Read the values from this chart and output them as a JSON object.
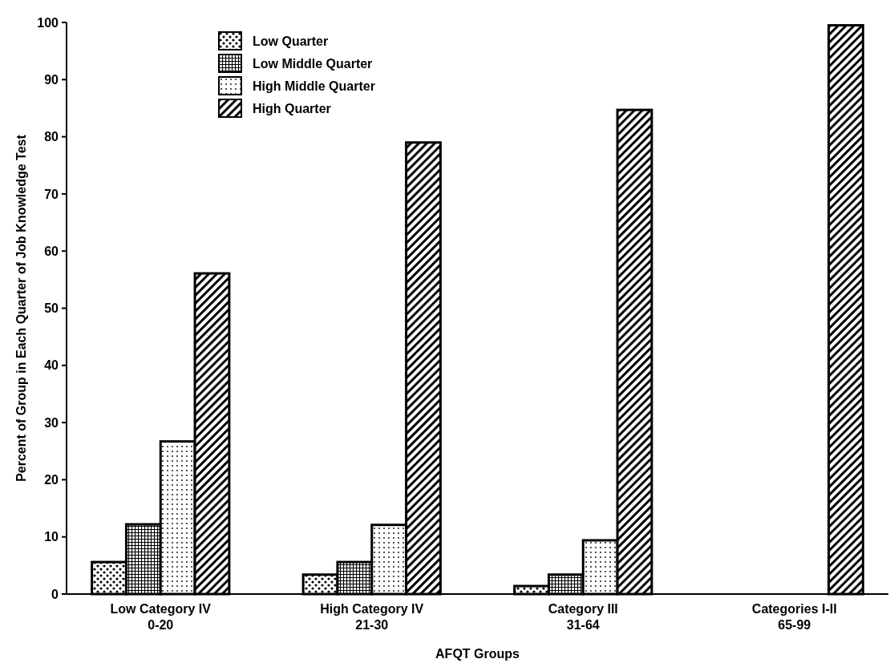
{
  "chart_data": {
    "type": "bar",
    "xlabel": "AFQT Groups",
    "ylabel": "Percent of Group in Each Quarter of Job Knowledge Test",
    "categories": [
      "Low Category IV\n0-20",
      "High Category IV\n21-30",
      "Category III\n31-64",
      "Categories I-II\n65-99"
    ],
    "series": [
      {
        "name": "Low Quarter",
        "color": "#000000",
        "values": [
          5.6,
          3.4,
          1.4,
          0
        ]
      },
      {
        "name": "Low Middle Quarter",
        "color": "#000000",
        "values": [
          12.2,
          5.6,
          3.4,
          0
        ]
      },
      {
        "name": "High Middle Quarter",
        "color": "#000000",
        "values": [
          26.7,
          12.1,
          9.4,
          0
        ]
      },
      {
        "name": "High Quarter",
        "color": "#000000",
        "values": [
          56.1,
          79,
          84.7,
          99.5
        ]
      }
    ],
    "ylim": [
      0,
      100
    ],
    "yticks": [
      0,
      10,
      20,
      30,
      40,
      50,
      60,
      70,
      80,
      90,
      100
    ],
    "grid": false,
    "legend": "top left"
  }
}
